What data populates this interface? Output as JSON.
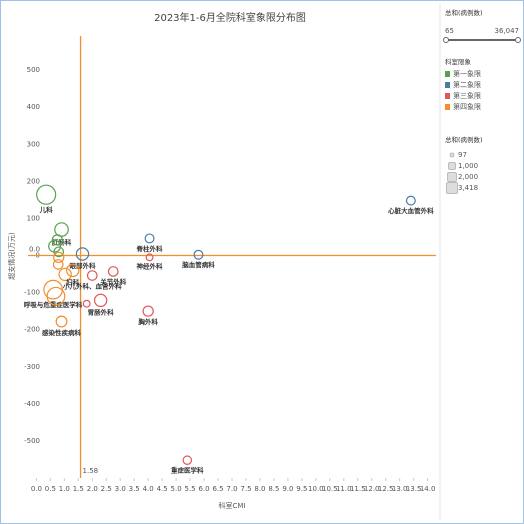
{
  "chart_data": {
    "type": "scatter",
    "title": "2023年1-6月全院科室象限分布图",
    "x_label": "科室CMI",
    "y_label": "超支情况(万元)",
    "xlim": [
      -0.3,
      14.3
    ],
    "ylim": [
      -600,
      600
    ],
    "xticks": [
      {
        "value": 0,
        "label": "0.0"
      },
      0.5,
      {
        "value": 1,
        "label": "1.0"
      },
      1.5,
      {
        "value": 2,
        "label": "2.0"
      },
      2.5,
      {
        "value": 3,
        "label": "3.0"
      },
      3.5,
      {
        "value": 4,
        "label": "4.0"
      },
      4.5,
      {
        "value": 5,
        "label": "5.0"
      },
      5.5,
      {
        "value": 6,
        "label": "6.0"
      },
      6.5,
      {
        "value": 7,
        "label": "7.0"
      },
      7.5,
      {
        "value": 8,
        "label": "8.0"
      },
      8.5,
      {
        "value": 9,
        "label": "9.0"
      },
      9.5,
      {
        "value": 10,
        "label": "10.0"
      },
      10.5,
      {
        "value": 11,
        "label": "11.0"
      },
      11.5,
      {
        "value": 12,
        "label": "12.0"
      },
      12.5,
      {
        "value": 13,
        "label": "13.0"
      },
      13.5,
      {
        "value": 14,
        "label": "14.0"
      }
    ],
    "yticks": [
      -500,
      -400,
      -300,
      -200,
      -100,
      0,
      100,
      200,
      300,
      400,
      500
    ],
    "grid": false,
    "reference_lines": {
      "x": 1.58,
      "y": {
        "value": 0,
        "label": "0.0"
      },
      "color": "#f28e2b"
    },
    "series": [
      {
        "name": "第一象限",
        "color": "#59a14f",
        "x": [
          0.35,
          0.9,
          0.75,
          0.65,
          0.8
        ],
        "values": [
          164,
          70,
          42,
          25,
          10
        ],
        "sizes": [
          3000,
          1200,
          500,
          800,
          400
        ],
        "point_labels": [
          "儿科",
          "肛肠科",
          null,
          null,
          null
        ]
      },
      {
        "name": "第二象限",
        "color": "#4e79a7",
        "x": [
          13.4,
          4.05,
          5.8,
          1.65
        ],
        "values": [
          148,
          46,
          2,
          4
        ],
        "sizes": [
          300,
          300,
          300,
          900
        ],
        "point_labels": [
          "心脏大血管外科",
          "脊柱外科",
          "脑血管病科",
          "眼部外科"
        ]
      },
      {
        "name": "第三象限",
        "color": "#e15759",
        "x": [
          4.05,
          2.75,
          2.0,
          2.3,
          4.0,
          5.4,
          1.8
        ],
        "values": [
          -5,
          -43,
          -54,
          -121,
          -150,
          -552,
          -130
        ],
        "sizes": [
          97,
          400,
          400,
          900,
          500,
          250,
          97
        ],
        "point_labels": [
          "神经外科",
          "关节外科",
          "小儿外科、血管外科",
          "胃肠外科",
          "胸外科",
          "重症医学科",
          null
        ]
      },
      {
        "name": "第四象限",
        "color": "#f28e2b",
        "x": [
          0.8,
          0.78,
          1.03,
          1.3,
          0.6,
          0.7,
          0.9
        ],
        "values": [
          -5,
          -24,
          -51,
          -40,
          -92,
          -110,
          -178
        ],
        "sizes": [
          500,
          400,
          900,
          900,
          2800,
          2500,
          600
        ],
        "point_labels": [
          null,
          null,
          null,
          "妇科",
          "呼吸与危重症医学科",
          null,
          "感染性疾病科"
        ]
      }
    ]
  },
  "panel": {
    "filter_title": "总和(病例数)",
    "filter_min": 65,
    "filter_max": {
      "value": 36047,
      "label": "36,047"
    },
    "color_legend_title": "科室限象",
    "size_legend_title": "总和(病例数)",
    "size_legend": [
      97,
      {
        "value": 1000,
        "label": "1,000"
      },
      {
        "value": 2000,
        "label": "2,000"
      },
      {
        "value": 3418,
        "label": "3,418"
      }
    ]
  }
}
